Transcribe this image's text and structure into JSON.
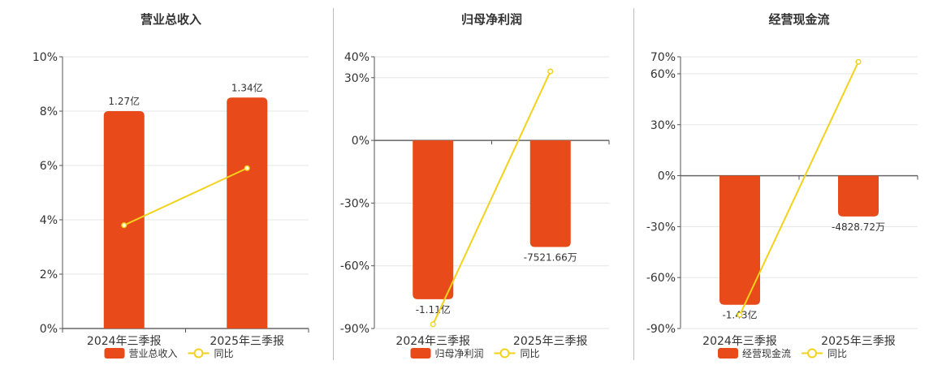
{
  "colors": {
    "bar": "#E84A19",
    "line": "#F2D21B",
    "grid": "#E6E6E6",
    "axis": "#555555",
    "zero": "#666666"
  },
  "legend_line_label": "同比",
  "chart_data": [
    {
      "type": "bar",
      "title": "营业总收入",
      "categories": [
        "2024年三季报",
        "2025年三季报"
      ],
      "series": [
        {
          "name": "营业总收入",
          "type": "bar",
          "values": [
            8.0,
            8.5
          ],
          "labels": [
            "1.27亿",
            "1.34亿"
          ]
        },
        {
          "name": "同比",
          "type": "line",
          "values": [
            3.8,
            5.9
          ]
        }
      ],
      "ylim": [
        0,
        10
      ],
      "yticks": [
        "0%",
        "2%",
        "4%",
        "6%",
        "8%",
        "10%"
      ],
      "ytick_values": [
        0,
        2,
        4,
        6,
        8,
        10
      ],
      "grid": true,
      "legend_position": "bottom"
    },
    {
      "type": "bar",
      "title": "归母净利润",
      "categories": [
        "2024年三季报",
        "2025年三季报"
      ],
      "series": [
        {
          "name": "归母净利润",
          "type": "bar",
          "values": [
            -76,
            -51
          ],
          "labels": [
            "-1.11亿",
            "-7521.66万"
          ]
        },
        {
          "name": "同比",
          "type": "line",
          "values": [
            -88,
            33
          ]
        }
      ],
      "ylim": [
        -90,
        40
      ],
      "yticks": [
        "-90%",
        "-60%",
        "-30%",
        "0%",
        "30%",
        "40%"
      ],
      "ytick_values": [
        -90,
        -60,
        -30,
        0,
        30,
        40
      ],
      "grid": true,
      "legend_position": "bottom"
    },
    {
      "type": "bar",
      "title": "经营现金流",
      "categories": [
        "2024年三季报",
        "2025年三季报"
      ],
      "series": [
        {
          "name": "经营现金流",
          "type": "bar",
          "values": [
            -76,
            -24
          ],
          "labels": [
            "-1.43亿",
            "-4828.72万"
          ]
        },
        {
          "name": "同比",
          "type": "line",
          "values": [
            -82,
            67
          ]
        }
      ],
      "ylim": [
        -90,
        70
      ],
      "yticks": [
        "-90%",
        "-60%",
        "-30%",
        "0%",
        "30%",
        "60%",
        "70%"
      ],
      "ytick_values": [
        -90,
        -60,
        -30,
        0,
        30,
        60,
        70
      ],
      "grid": true,
      "legend_position": "bottom"
    }
  ]
}
